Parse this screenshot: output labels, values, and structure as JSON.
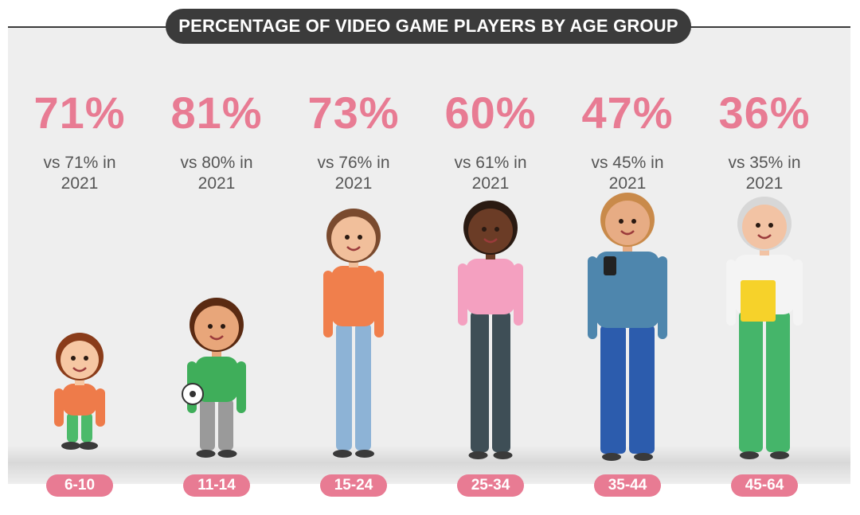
{
  "title": "PERCENTAGE OF VIDEO GAME PLAYERS BY AGE GROUP",
  "colors": {
    "accent": "#e87b93",
    "title_bg": "#3b3b3b",
    "panel": "#eeeeee"
  },
  "chart_data": {
    "type": "table",
    "title": "PERCENTAGE OF VIDEO GAME PLAYERS BY AGE GROUP",
    "categories": [
      "6-10",
      "11-14",
      "15-24",
      "25-34",
      "35-44",
      "45-64"
    ],
    "series": [
      {
        "values": [
          71,
          81,
          73,
          60,
          47,
          36
        ]
      },
      {
        "values": [
          71,
          80,
          76,
          61,
          45,
          35
        ]
      }
    ],
    "value_labels": [
      "71%",
      "81%",
      "73%",
      "60%",
      "47%",
      "36%"
    ],
    "comparison_labels": [
      "vs 71% in 2021",
      "vs 80% in 2021",
      "vs 76% in 2021",
      "vs 61% in 2021",
      "vs 45% in 2021",
      "vs 35% in 2021"
    ],
    "figure_icons": [
      "young-child-icon",
      "kid-with-ball-icon",
      "teen-girl-icon",
      "woman-icon",
      "bearded-man-with-phone-icon",
      "older-woman-with-folder-icon"
    ]
  }
}
